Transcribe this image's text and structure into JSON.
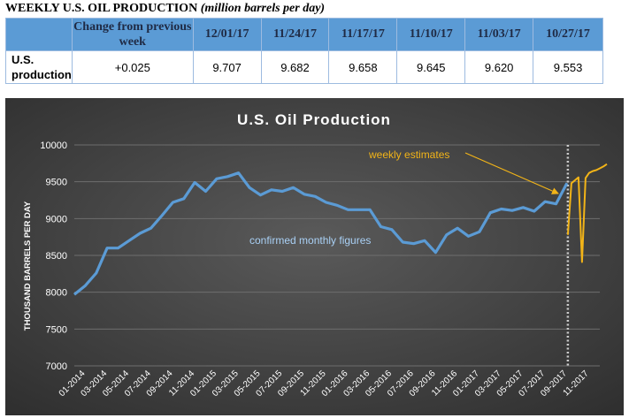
{
  "header": {
    "title": "WEEKLY U.S. OIL PRODUCTION",
    "subtitle": "(million barrels per day)"
  },
  "table": {
    "change_header": "Change from previous week",
    "dates": [
      "12/01/17",
      "11/24/17",
      "11/17/17",
      "11/10/17",
      "11/03/17",
      "10/27/17"
    ],
    "row_label": "U.S. production",
    "change_value": "+0.025",
    "values": [
      "9.707",
      "9.682",
      "9.658",
      "9.645",
      "9.620",
      "9.553"
    ],
    "change_color": "#1e9b3a"
  },
  "chart_data": {
    "type": "line",
    "title": "U.S. Oil Production",
    "ylabel": "THOUSAND BARRELS PER DAY",
    "ylim": [
      7000,
      10000
    ],
    "yticks": [
      7000,
      7500,
      8000,
      8500,
      9000,
      9500,
      10000
    ],
    "xtick_labels": [
      "01-2014",
      "03-2014",
      "05-2014",
      "07-2014",
      "09-2014",
      "11-2014",
      "01-2015",
      "03-2015",
      "05-2015",
      "07-2015",
      "09-2015",
      "11-2015",
      "01-2016",
      "03-2016",
      "05-2016",
      "07-2016",
      "09-2016",
      "11-2016",
      "01-2017",
      "03-2017",
      "05-2017",
      "07-2017",
      "09-2017",
      "11-2017"
    ],
    "background": "#404040",
    "series": [
      {
        "label": "confirmed monthly figures",
        "color": "#5b9bd5",
        "x": [
          "12-2013",
          "01-2014",
          "02-2014",
          "03-2014",
          "04-2014",
          "05-2014",
          "06-2014",
          "07-2014",
          "08-2014",
          "09-2014",
          "10-2014",
          "11-2014",
          "12-2014",
          "01-2015",
          "02-2015",
          "03-2015",
          "04-2015",
          "05-2015",
          "06-2015",
          "07-2015",
          "08-2015",
          "09-2015",
          "10-2015",
          "11-2015",
          "12-2015",
          "01-2016",
          "02-2016",
          "03-2016",
          "04-2016",
          "05-2016",
          "06-2016",
          "07-2016",
          "08-2016",
          "09-2016",
          "10-2016",
          "11-2016",
          "12-2016",
          "01-2017",
          "02-2017",
          "03-2017",
          "04-2017",
          "05-2017",
          "06-2017",
          "07-2017",
          "08-2017",
          "09-2017"
        ],
        "values": [
          7970,
          8090,
          8260,
          8600,
          8600,
          8700,
          8800,
          8870,
          9040,
          9220,
          9270,
          9490,
          9370,
          9540,
          9570,
          9620,
          9420,
          9320,
          9390,
          9370,
          9420,
          9330,
          9300,
          9220,
          9180,
          9120,
          9120,
          9120,
          8890,
          8850,
          8680,
          8660,
          8700,
          8540,
          8780,
          8870,
          8760,
          8820,
          9080,
          9130,
          9110,
          9150,
          9100,
          9230,
          9200,
          9480
        ]
      },
      {
        "label": "weekly estimates",
        "color": "#f2b418",
        "x": [
          "09-2017",
          "09-2017",
          "10-2017",
          "10-2017",
          "10-2017",
          "10-2017",
          "10-2017",
          "11-2017",
          "11-2017",
          "11-2017",
          "11-2017",
          "12-2017"
        ],
        "values": [
          8780,
          9480,
          9520,
          9560,
          8410,
          9550,
          9620,
          9645,
          9658,
          9682,
          9707,
          9740
        ]
      }
    ],
    "divider": {
      "x": "09-2017",
      "style": "dotted",
      "color": "#cccccc"
    },
    "annotations": [
      "weekly estimates",
      "confirmed monthly figures"
    ]
  }
}
